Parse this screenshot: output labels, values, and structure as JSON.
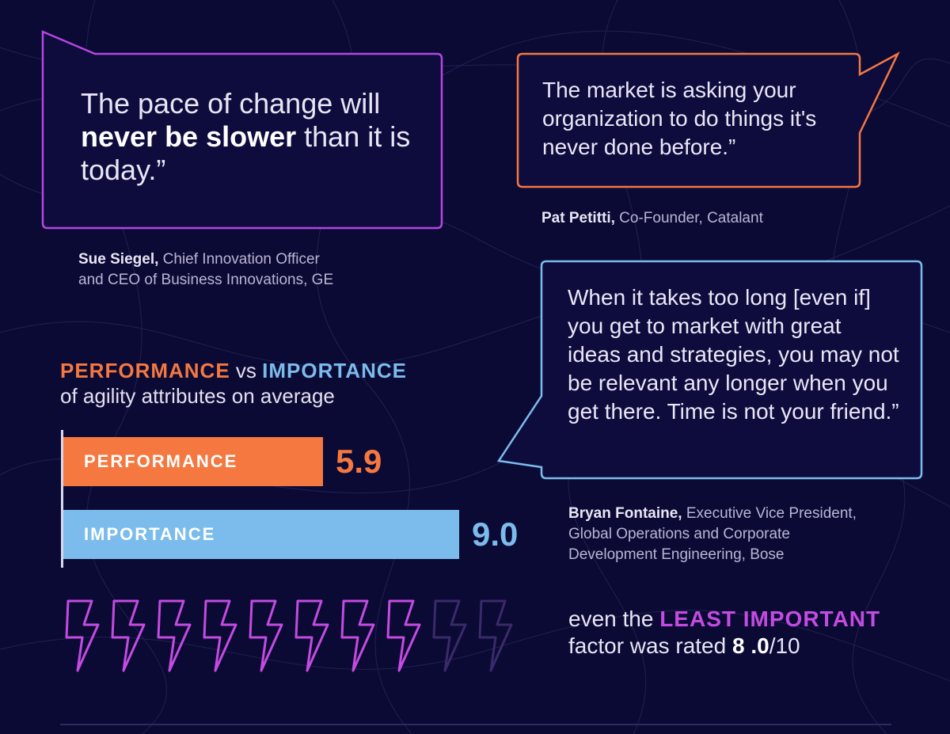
{
  "quotes": [
    {
      "text_before": "The pace of change will ",
      "text_bold": "never be slower",
      "text_after": " than it is today.”",
      "author": "Sue Siegel,",
      "role_line1": " Chief Innovation Officer",
      "role_line2": "and CEO of Business Innovations, GE",
      "border_color": "#b446e0"
    },
    {
      "text": "The market is asking your organization to do things it's never done before.”",
      "author": "Pat Petitti,",
      "role_line1": " Co-Founder, Catalant",
      "border_color": "#f47840"
    },
    {
      "text": "When it takes too long [even if] you get to market with great ideas and strategies, you may not be relevant any longer when you get there. Time is not your friend.”",
      "author": "Bryan Fontaine,",
      "role_line1": " Executive Vice President,",
      "role_line2": "Global Operations and Corporate",
      "role_line3": "Development Engineering, Bose",
      "border_color": "#7bbcec"
    }
  ],
  "chart_title": {
    "performance": "PERFORMANCE",
    "vs": " vs ",
    "importance": "IMPORTANCE",
    "subtitle": "of agility attributes on average"
  },
  "chart_data": {
    "type": "bar",
    "orientation": "horizontal",
    "categories": [
      "PERFORMANCE",
      "IMPORTANCE"
    ],
    "values": [
      5.9,
      9.0
    ],
    "value_labels": [
      "5.9",
      "9.0"
    ],
    "colors": [
      "#f47840",
      "#7bbcec"
    ],
    "xlim": [
      0,
      10
    ]
  },
  "rating": {
    "filled": 8,
    "total": 10,
    "filled_color": "#c44be0",
    "empty_color": "#3a2a6a",
    "icon": "lightning-bolt-icon"
  },
  "caption": {
    "line1_prefix": "even the ",
    "highlight": "LEAST IMPORTANT",
    "line2_prefix": "factor was rated ",
    "value": "8 .0",
    "suffix": "/10"
  },
  "colors": {
    "background": "#0b0a35",
    "orange": "#f47840",
    "blue": "#7bbcec",
    "purple": "#c44be0"
  }
}
